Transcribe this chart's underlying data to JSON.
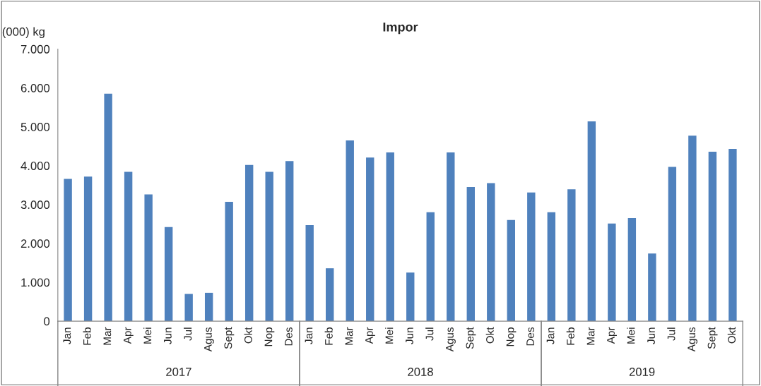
{
  "chart_data": {
    "type": "bar",
    "title": "Impor",
    "ylabel": "(000) kg",
    "categories": [
      "Jan",
      "Feb",
      "Mar",
      "Apr",
      "Mei",
      "Jun",
      "Jul",
      "Agus",
      "Sept",
      "Okt",
      "Nop",
      "Des",
      "Jan",
      "Feb",
      "Mar",
      "Apr",
      "Mei",
      "Jun",
      "Jul",
      "Agus",
      "Sept",
      "Okt",
      "Nop",
      "Des",
      "Jan",
      "Feb",
      "Mar",
      "Apr",
      "Mei",
      "Jun",
      "Jul",
      "Agus",
      "Sept",
      "Okt"
    ],
    "values": [
      3660,
      3720,
      5850,
      3840,
      3260,
      2420,
      700,
      730,
      3070,
      4020,
      3840,
      4120,
      2470,
      1360,
      4650,
      4210,
      4340,
      1250,
      2800,
      4340,
      3450,
      3550,
      2600,
      3310,
      2800,
      3390,
      5140,
      2510,
      2650,
      1740,
      3970,
      4770,
      4360,
      4430
    ],
    "color": "#4f81bd",
    "ylim": [
      0,
      7000
    ],
    "yticks": [
      {
        "value": 0,
        "label": "0"
      },
      {
        "value": 1000,
        "label": "1.000"
      },
      {
        "value": 2000,
        "label": "2.000"
      },
      {
        "value": 3000,
        "label": "3.000"
      },
      {
        "value": 4000,
        "label": "4.000"
      },
      {
        "value": 5000,
        "label": "5.000"
      },
      {
        "value": 6000,
        "label": "6.000"
      },
      {
        "value": 7000,
        "label": "7.000"
      }
    ],
    "grid": false,
    "legend": false,
    "annotations": [
      "2017",
      "2018",
      "2019"
    ]
  }
}
